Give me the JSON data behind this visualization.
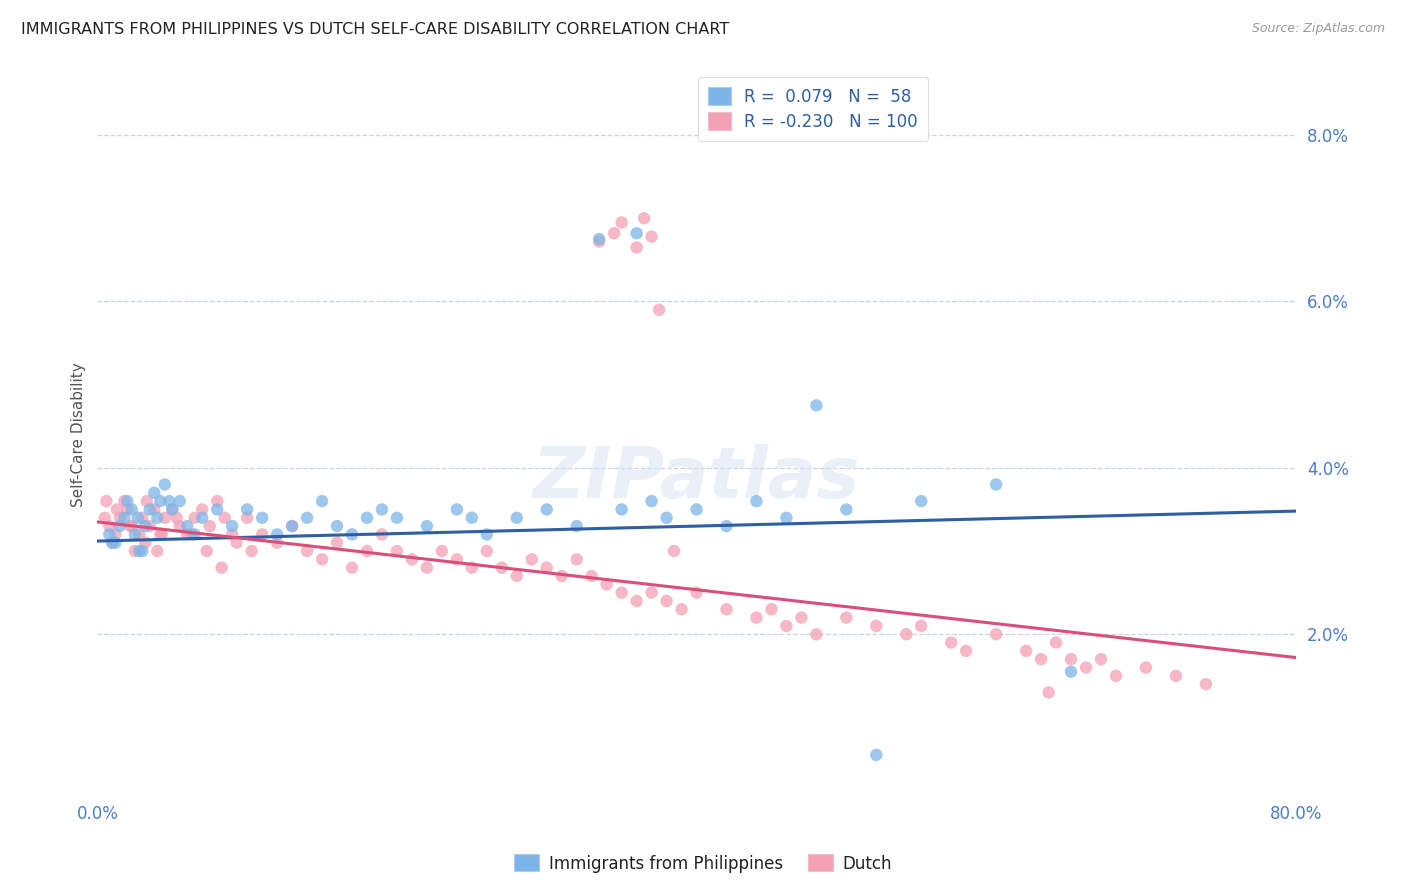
{
  "title": "IMMIGRANTS FROM PHILIPPINES VS DUTCH SELF-CARE DISABILITY CORRELATION CHART",
  "source": "Source: ZipAtlas.com",
  "ylabel": "Self-Care Disability",
  "watermark": "ZIPatlas",
  "blue_R": 0.079,
  "blue_N": 58,
  "pink_R": -0.23,
  "pink_N": 100,
  "xlim": [
    0.0,
    80.0
  ],
  "ylim": [
    0.0,
    8.8
  ],
  "yticks": [
    2.0,
    4.0,
    6.0,
    8.0
  ],
  "blue_color": "#7EB5E8",
  "pink_color": "#F4A0B5",
  "blue_line_color": "#2E5FA3",
  "pink_line_color": "#D94F7A",
  "background_color": "#FFFFFF",
  "grid_color": "#C8D4E8",
  "title_color": "#222222",
  "tick_color": "#4A7EC7",
  "blue_trend_y0": 3.12,
  "blue_trend_y1": 3.48,
  "pink_trend_y0": 3.35,
  "pink_trend_y1": 1.72,
  "blue_x": [
    1.2,
    1.5,
    1.8,
    2.0,
    2.3,
    2.5,
    2.7,
    3.0,
    3.2,
    3.5,
    3.8,
    4.0,
    4.2,
    4.5,
    5.0,
    5.5,
    6.0,
    6.5,
    7.0,
    8.0,
    9.0,
    10.0,
    11.0,
    12.0,
    13.0,
    14.0,
    15.0,
    16.0,
    17.0,
    18.0,
    19.0,
    20.0,
    22.0,
    24.0,
    25.0,
    26.0,
    28.0,
    30.0,
    32.0,
    35.0,
    37.0,
    38.0,
    40.0,
    42.0,
    44.0,
    46.0,
    50.0,
    55.0,
    60.0,
    65.0,
    0.8,
    1.0,
    2.8,
    4.8,
    33.5,
    36.0,
    48.0,
    52.0
  ],
  "blue_y": [
    3.1,
    3.3,
    3.4,
    3.6,
    3.5,
    3.2,
    3.4,
    3.0,
    3.3,
    3.5,
    3.7,
    3.4,
    3.6,
    3.8,
    3.5,
    3.6,
    3.3,
    3.2,
    3.4,
    3.5,
    3.3,
    3.5,
    3.4,
    3.2,
    3.3,
    3.4,
    3.6,
    3.3,
    3.2,
    3.4,
    3.5,
    3.4,
    3.3,
    3.5,
    3.4,
    3.2,
    3.4,
    3.5,
    3.3,
    3.5,
    3.6,
    3.4,
    3.5,
    3.3,
    3.6,
    3.4,
    3.5,
    3.6,
    3.8,
    1.55,
    3.2,
    3.1,
    3.0,
    3.6,
    6.75,
    6.82,
    4.75,
    0.55
  ],
  "pink_x": [
    0.5,
    0.8,
    1.0,
    1.2,
    1.5,
    1.8,
    2.0,
    2.2,
    2.5,
    2.8,
    3.0,
    3.2,
    3.5,
    3.8,
    4.0,
    4.2,
    4.5,
    5.0,
    5.5,
    6.0,
    6.5,
    7.0,
    7.5,
    8.0,
    8.5,
    9.0,
    10.0,
    11.0,
    12.0,
    13.0,
    14.0,
    15.0,
    16.0,
    17.0,
    18.0,
    19.0,
    20.0,
    21.0,
    22.0,
    23.0,
    24.0,
    25.0,
    26.0,
    27.0,
    28.0,
    29.0,
    30.0,
    31.0,
    32.0,
    33.0,
    34.0,
    35.0,
    36.0,
    37.0,
    38.0,
    39.0,
    40.0,
    42.0,
    44.0,
    45.0,
    46.0,
    47.0,
    48.0,
    50.0,
    52.0,
    54.0,
    55.0,
    57.0,
    58.0,
    60.0,
    62.0,
    63.0,
    64.0,
    65.0,
    66.0,
    67.0,
    68.0,
    70.0,
    72.0,
    74.0,
    0.6,
    1.3,
    2.3,
    3.3,
    4.3,
    5.3,
    6.3,
    7.3,
    8.3,
    9.3,
    10.3,
    33.5,
    35.0,
    36.0,
    36.5,
    34.5,
    37.5,
    37.0,
    38.5,
    63.5
  ],
  "pink_y": [
    3.4,
    3.3,
    3.1,
    3.2,
    3.4,
    3.6,
    3.5,
    3.3,
    3.0,
    3.2,
    3.4,
    3.1,
    3.3,
    3.5,
    3.0,
    3.2,
    3.4,
    3.5,
    3.3,
    3.2,
    3.4,
    3.5,
    3.3,
    3.6,
    3.4,
    3.2,
    3.4,
    3.2,
    3.1,
    3.3,
    3.0,
    2.9,
    3.1,
    2.8,
    3.0,
    3.2,
    3.0,
    2.9,
    2.8,
    3.0,
    2.9,
    2.8,
    3.0,
    2.8,
    2.7,
    2.9,
    2.8,
    2.7,
    2.9,
    2.7,
    2.6,
    2.5,
    2.4,
    2.5,
    2.4,
    2.3,
    2.5,
    2.3,
    2.2,
    2.3,
    2.1,
    2.2,
    2.0,
    2.2,
    2.1,
    2.0,
    2.1,
    1.9,
    1.8,
    2.0,
    1.8,
    1.7,
    1.9,
    1.7,
    1.6,
    1.7,
    1.5,
    1.6,
    1.5,
    1.4,
    3.6,
    3.5,
    3.3,
    3.6,
    3.2,
    3.4,
    3.2,
    3.0,
    2.8,
    3.1,
    3.0,
    6.72,
    6.95,
    6.65,
    7.0,
    6.82,
    5.9,
    6.78,
    3.0,
    1.3
  ]
}
